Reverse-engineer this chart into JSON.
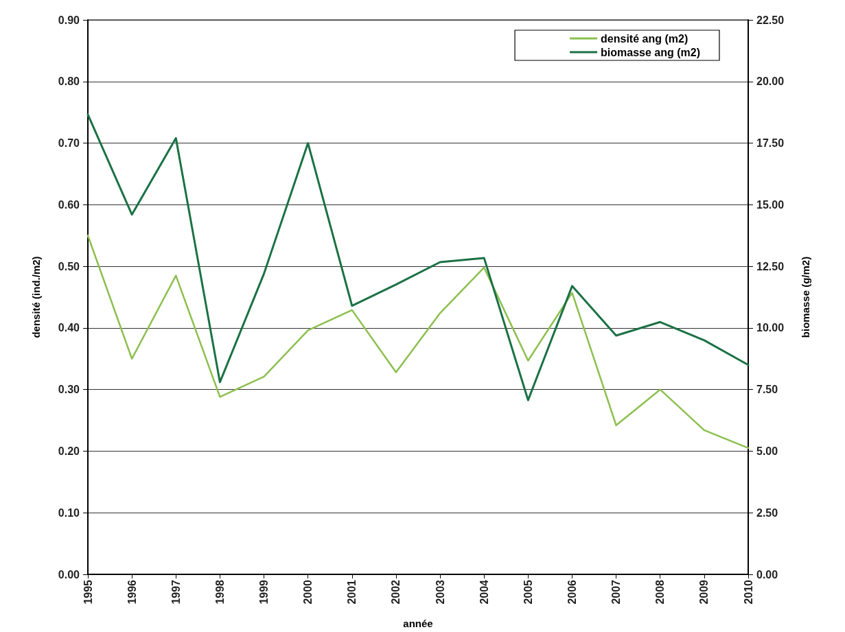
{
  "chart_data": {
    "type": "line",
    "xlabel": "année",
    "ylabel": "densité (ind./m2)",
    "y2label": "biomasse (g/m2)",
    "categories": [
      "1995",
      "1996",
      "1997",
      "1998",
      "1999",
      "2000",
      "2001",
      "2002",
      "2003",
      "2004",
      "2005",
      "2006",
      "2007",
      "2008",
      "2009",
      "2010"
    ],
    "series": [
      {
        "name": "densité ang (m2)",
        "color": "#8cbf4e",
        "values": [
          0.55,
          0.35,
          0.485,
          0.288,
          0.321,
          0.396,
          0.429,
          0.328,
          0.424,
          0.498,
          0.347,
          0.457,
          0.242,
          0.3,
          0.234,
          0.205
        ]
      },
      {
        "name": "biomasse ang (m2)",
        "color": "#1b7145",
        "axis": "y2",
        "values": [
          18.66,
          14.6,
          17.7,
          7.8,
          12.2,
          17.5,
          10.9,
          11.76,
          12.67,
          12.84,
          7.07,
          11.7,
          9.69,
          10.24,
          9.5,
          8.5
        ]
      }
    ],
    "ylim": [
      0,
      0.9
    ],
    "yticks": [
      {
        "value": 0,
        "label": "0.00"
      },
      {
        "value": 0.1,
        "label": "0.10"
      },
      {
        "value": 0.2,
        "label": "0.20"
      },
      {
        "value": 0.3,
        "label": "0.30"
      },
      {
        "value": 0.4,
        "label": "0.40"
      },
      {
        "value": 0.5,
        "label": "0.50"
      },
      {
        "value": 0.6,
        "label": "0.60"
      },
      {
        "value": 0.7,
        "label": "0.70"
      },
      {
        "value": 0.8,
        "label": "0.80"
      },
      {
        "value": 0.9,
        "label": "0.90"
      }
    ],
    "y2lim": [
      0,
      22.5
    ],
    "y2ticks": [
      {
        "value": 0,
        "label": "0.00"
      },
      {
        "value": 2.5,
        "label": "2.50"
      },
      {
        "value": 5,
        "label": "5.00"
      },
      {
        "value": 7.5,
        "label": "7.50"
      },
      {
        "value": 10,
        "label": "10.00"
      },
      {
        "value": 12.5,
        "label": "12.50"
      },
      {
        "value": 15,
        "label": "15.00"
      },
      {
        "value": 17.5,
        "label": "17.50"
      },
      {
        "value": 20,
        "label": "20.00"
      },
      {
        "value": 22.5,
        "label": "22.50"
      }
    ],
    "grid": "y",
    "legend": "top right",
    "marker": "none",
    "line_style": "solid"
  }
}
